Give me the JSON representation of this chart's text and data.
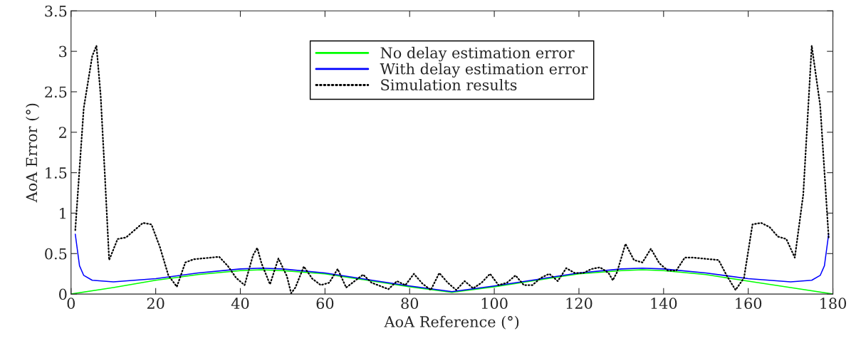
{
  "chart_data": {
    "type": "line",
    "xlabel": "AoA Reference (°)",
    "ylabel": "AoA Error (°)",
    "xlim": [
      0,
      180
    ],
    "xticks": [
      0,
      20,
      40,
      60,
      80,
      100,
      120,
      140,
      160,
      180
    ],
    "ylim": [
      0,
      3.5
    ],
    "yticks": [
      0,
      0.5,
      1,
      1.5,
      2,
      2.5,
      3,
      3.5
    ],
    "grid": false,
    "legend": "top",
    "series": [
      {
        "name": "No delay estimation error",
        "color": "#00ff00",
        "line_style": "solid",
        "x": [
          0,
          10,
          20,
          30,
          40,
          45,
          50,
          60,
          70,
          80,
          90,
          100,
          110,
          120,
          130,
          135,
          140,
          150,
          160,
          170,
          180
        ],
        "values": [
          0,
          0.08,
          0.17,
          0.24,
          0.29,
          0.3,
          0.29,
          0.25,
          0.17,
          0.09,
          0.02,
          0.09,
          0.17,
          0.25,
          0.29,
          0.3,
          0.29,
          0.24,
          0.16,
          0.08,
          0
        ]
      },
      {
        "name": "With delay estimation error",
        "color": "#0000ff",
        "line_style": "solid",
        "x": [
          1,
          2,
          3,
          5,
          10,
          20,
          30,
          40,
          45,
          50,
          60,
          70,
          80,
          90,
          100,
          110,
          120,
          130,
          135,
          140,
          150,
          160,
          170,
          175,
          177,
          178,
          179
        ],
        "values": [
          0.74,
          0.35,
          0.23,
          0.17,
          0.15,
          0.19,
          0.26,
          0.31,
          0.32,
          0.31,
          0.26,
          0.18,
          0.1,
          0.03,
          0.1,
          0.18,
          0.26,
          0.31,
          0.32,
          0.31,
          0.26,
          0.19,
          0.15,
          0.17,
          0.23,
          0.35,
          0.74
        ]
      },
      {
        "name": "Simulation results",
        "color": "#000000",
        "line_style": "dotted",
        "x": [
          1,
          3,
          5,
          6,
          7,
          8,
          9,
          11,
          13,
          15,
          17,
          19,
          21,
          23,
          25,
          27,
          29,
          31,
          33,
          35,
          37,
          39,
          41,
          43,
          44,
          45,
          47,
          49,
          51,
          52,
          53,
          55,
          57,
          59,
          61,
          63,
          65,
          67,
          69,
          71,
          73,
          75,
          77,
          79,
          81,
          83,
          85,
          87,
          89,
          91,
          93,
          95,
          97,
          99,
          101,
          103,
          105,
          107,
          109,
          111,
          113,
          115,
          117,
          119,
          121,
          123,
          125,
          127,
          128,
          129,
          131,
          133,
          135,
          137,
          139,
          141,
          143,
          145,
          147,
          149,
          151,
          153,
          155,
          157,
          159,
          161,
          163,
          165,
          167,
          169,
          171,
          173,
          175,
          177,
          179
        ],
        "values": [
          0.79,
          2.3,
          2.94,
          3.07,
          2.45,
          1.46,
          0.42,
          0.68,
          0.7,
          0.79,
          0.88,
          0.86,
          0.58,
          0.23,
          0.09,
          0.39,
          0.43,
          0.44,
          0.45,
          0.46,
          0.35,
          0.2,
          0.11,
          0.48,
          0.57,
          0.38,
          0.12,
          0.44,
          0.22,
          0.01,
          0.08,
          0.34,
          0.19,
          0.11,
          0.14,
          0.31,
          0.08,
          0.16,
          0.24,
          0.14,
          0.1,
          0.06,
          0.16,
          0.11,
          0.25,
          0.13,
          0.05,
          0.26,
          0.14,
          0.05,
          0.16,
          0.07,
          0.14,
          0.25,
          0.11,
          0.14,
          0.23,
          0.11,
          0.11,
          0.2,
          0.25,
          0.16,
          0.32,
          0.26,
          0.26,
          0.31,
          0.33,
          0.26,
          0.17,
          0.27,
          0.62,
          0.42,
          0.39,
          0.56,
          0.38,
          0.29,
          0.29,
          0.45,
          0.45,
          0.44,
          0.43,
          0.42,
          0.22,
          0.05,
          0.2,
          0.86,
          0.88,
          0.83,
          0.71,
          0.68,
          0.45,
          1.23,
          3.07,
          2.33,
          0.7
        ]
      }
    ]
  }
}
